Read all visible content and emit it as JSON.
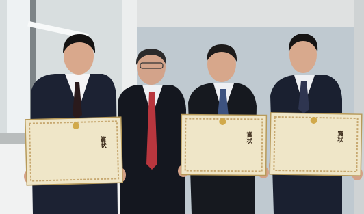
{
  "certificates": [
    {
      "title": "賞状"
    },
    {
      "title": "賞状"
    },
    {
      "title": "賞状"
    }
  ]
}
